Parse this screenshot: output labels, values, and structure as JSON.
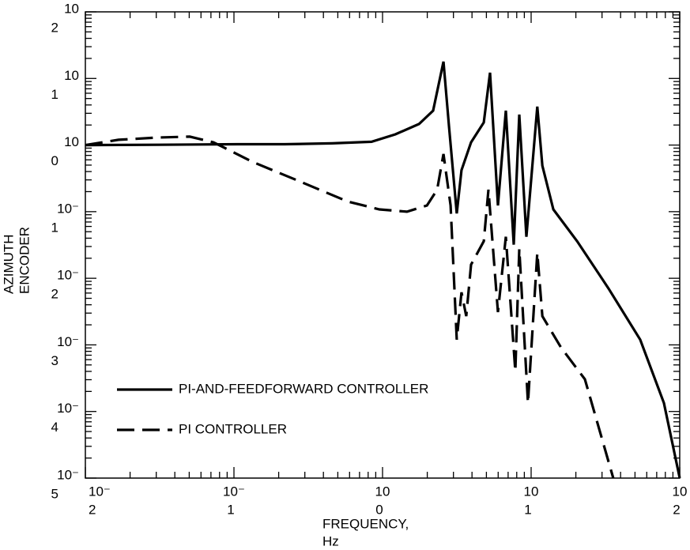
{
  "chart_data": {
    "type": "line",
    "log_x": true,
    "log_y": true,
    "minor_ticks": true,
    "legend": "lower left",
    "xlabel": [
      "FREQUENCY,",
      "Hz"
    ],
    "ylabel": [
      "AZIMUTH",
      "ENCODER"
    ],
    "xlim": [
      0.01,
      100
    ],
    "ylim": [
      1e-05,
      100
    ],
    "xticks": [
      {
        "value": 0.01,
        "label": [
          "10⁻",
          "2"
        ]
      },
      {
        "value": 0.1,
        "label": [
          "10⁻",
          "1"
        ]
      },
      {
        "value": 1,
        "label": [
          "10",
          "0"
        ]
      },
      {
        "value": 10,
        "label": [
          "10",
          "1"
        ]
      },
      {
        "value": 100,
        "label": [
          "10",
          "2"
        ]
      }
    ],
    "yticks": [
      {
        "value": 100,
        "label": [
          "10",
          "2"
        ]
      },
      {
        "value": 10,
        "label": [
          "10",
          "1"
        ]
      },
      {
        "value": 1,
        "label": [
          "10",
          "0"
        ]
      },
      {
        "value": 0.1,
        "label": [
          "10⁻",
          "1"
        ]
      },
      {
        "value": 0.01,
        "label": [
          "10⁻",
          "2"
        ]
      },
      {
        "value": 0.001,
        "label": [
          "10⁻",
          "3"
        ]
      },
      {
        "value": 0.0001,
        "label": [
          "10⁻",
          "4"
        ]
      },
      {
        "value": 1e-05,
        "label": [
          "10⁻",
          "5"
        ]
      }
    ],
    "series": [
      {
        "name": "PI-AND-FEEDFORWARD CONTROLLER",
        "color": "#000000",
        "linestyle": "solid",
        "x": [
          0.01,
          0.031,
          0.105,
          0.219,
          0.457,
          0.843,
          1.22,
          1.76,
          2.19,
          2.57,
          2.8,
          3.16,
          3.4,
          3.94,
          4.8,
          5.29,
          5.98,
          6.76,
          7.64,
          8.32,
          9.29,
          11.0,
          11.9,
          14.1,
          20.4,
          33.2,
          54.2,
          78.3,
          100
        ],
        "values": [
          1.0,
          1.01,
          1.03,
          1.03,
          1.06,
          1.12,
          1.45,
          2.07,
          3.29,
          17.9,
          1.9,
          0.094,
          0.42,
          1.1,
          2.18,
          12.2,
          0.124,
          3.29,
          0.032,
          2.87,
          0.042,
          3.78,
          0.49,
          0.108,
          0.036,
          0.007,
          0.0012,
          0.000134,
          1e-05
        ]
      },
      {
        "name": "PI CONTROLLER",
        "color": "#000000",
        "linestyle": "dashed",
        "x": [
          0.01,
          0.0167,
          0.031,
          0.0504,
          0.0728,
          0.134,
          0.28,
          0.583,
          0.953,
          1.46,
          1.99,
          2.33,
          2.57,
          2.87,
          3.16,
          3.4,
          3.66,
          3.94,
          4.8,
          5.16,
          5.98,
          6.76,
          7.83,
          8.32,
          9.52,
          11.0,
          11.9,
          15.9,
          23.0,
          35.7
        ],
        "values": [
          1.0,
          1.2,
          1.3,
          1.34,
          1.1,
          0.557,
          0.282,
          0.142,
          0.108,
          0.1,
          0.124,
          0.214,
          0.733,
          0.124,
          0.0012,
          0.00615,
          0.0027,
          0.016,
          0.036,
          0.214,
          0.0031,
          0.042,
          0.0004,
          0.0276,
          0.000134,
          0.0241,
          0.0027,
          0.00091,
          0.000305,
          1e-05
        ]
      }
    ]
  }
}
